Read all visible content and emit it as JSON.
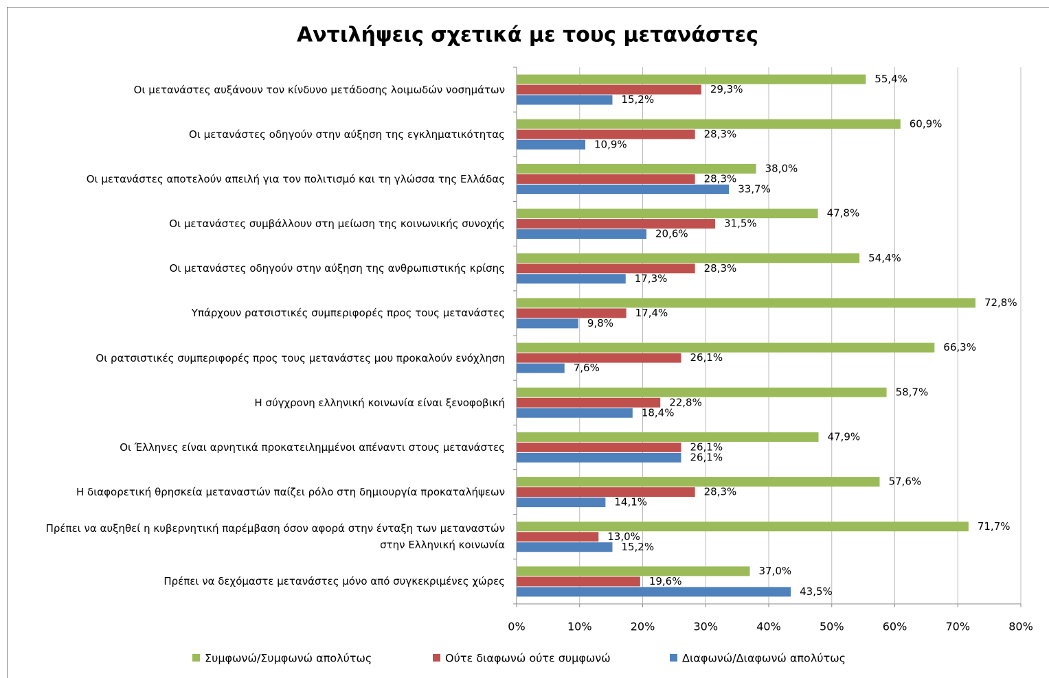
{
  "chart_data": {
    "type": "bar",
    "orientation": "horizontal",
    "title": "Αντιλήψεις σχετικά με τους μετανάστες",
    "categories": [
      "Οι μετανάστες αυξάνουν τον κίνδυνο μετάδοσης λοιμωδών νοσημάτων",
      "Οι μετανάστες οδηγούν στην αύξηση της εγκληματικότητας",
      "Οι μετανάστες αποτελούν απειλή για τον πολιτισμό και τη γλώσσα της Ελλάδας",
      "Οι μετανάστες συμβάλλουν στη μείωση της κοινωνικής συνοχής",
      "Οι μετανάστες οδηγούν στην αύξηση της ανθρωπιστικής κρίσης",
      "Υπάρχουν ρατσιστικές συμπεριφορές προς τους μετανάστες",
      "Οι ρατσιστικές συμπεριφορές προς τους μετανάστες μου προκαλούν ενόχληση",
      "Η σύγχρονη ελληνική κοινωνία είναι ξενοφοβική",
      "Οι Έλληνες είναι αρνητικά προκατειλημμένοι απέναντι στους μετανάστες",
      "Η διαφορετική θρησκεία μεταναστών παίζει ρόλο στη δημιουργία προκαταλήψεων",
      "Πρέπει να αυξηθεί η κυβερνητική παρέμβαση όσον αφορά στην ένταξη των μεταναστών\nστην Ελληνική κοινωνία",
      "Πρέπει να δεχόμαστε μετανάστες μόνο από συγκεκριμένες χώρες"
    ],
    "series": [
      {
        "name": "Συμφωνώ/Συμφωνώ απολύτως",
        "color": "#9bbb59",
        "values": [
          55.4,
          60.9,
          38.0,
          47.8,
          54.4,
          72.8,
          66.3,
          58.7,
          47.9,
          57.6,
          71.7,
          37.0
        ],
        "value_labels": [
          "55,4%",
          "60,9%",
          "38,0%",
          "47,8%",
          "54,4%",
          "72,8%",
          "66,3%",
          "58,7%",
          "47,9%",
          "57,6%",
          "71,7%",
          "37,0%"
        ]
      },
      {
        "name": "Ούτε διαφωνώ ούτε συμφωνώ",
        "color": "#c0504d",
        "values": [
          29.3,
          28.3,
          28.3,
          31.5,
          28.3,
          17.4,
          26.1,
          22.8,
          26.1,
          28.3,
          13.0,
          19.6
        ],
        "value_labels": [
          "29,3%",
          "28,3%",
          "28,3%",
          "31,5%",
          "28,3%",
          "17,4%",
          "26,1%",
          "22,8%",
          "26,1%",
          "28,3%",
          "13,0%",
          "19,6%"
        ]
      },
      {
        "name": "Διαφωνώ/Διαφωνώ απολύτως",
        "color": "#4f81bd",
        "values": [
          15.2,
          10.9,
          33.7,
          20.6,
          17.3,
          9.8,
          7.6,
          18.4,
          26.1,
          14.1,
          15.2,
          43.5
        ],
        "value_labels": [
          "15,2%",
          "10,9%",
          "33,7%",
          "20,6%",
          "17,3%",
          "9,8%",
          "7,6%",
          "18,4%",
          "26,1%",
          "14,1%",
          "15,2%",
          "43,5%"
        ]
      }
    ],
    "xlim": [
      0,
      80
    ],
    "xticks": [
      {
        "value": 0,
        "label": "0%"
      },
      {
        "value": 10,
        "label": "10%"
      },
      {
        "value": 20,
        "label": "20%"
      },
      {
        "value": 30,
        "label": "30%"
      },
      {
        "value": 40,
        "label": "40%"
      },
      {
        "value": 50,
        "label": "50%"
      },
      {
        "value": 60,
        "label": "60%"
      },
      {
        "value": 70,
        "label": "70%"
      },
      {
        "value": 80,
        "label": "80%"
      }
    ],
    "grid": true,
    "legend": "bottom"
  }
}
